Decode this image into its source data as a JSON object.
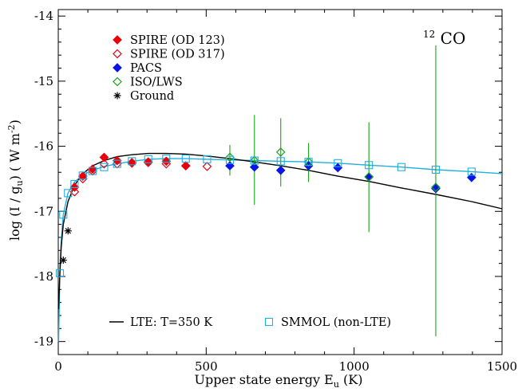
{
  "chart_data": {
    "type": "scatter",
    "title": "",
    "xlabel": "Upper state energy E",
    "xlabel_sub": "u",
    "xlabel_unit": " (K)",
    "ylabel": "log (I / g",
    "ylabel_sub": "u",
    "ylabel_unit": ") ( W m",
    "ylabel_sup": "-2",
    "ylabel_end": ")",
    "xlim": [
      0,
      1500
    ],
    "ylim": [
      -19.2,
      -13.9
    ],
    "x_ticks": [
      0,
      500,
      1000,
      1500
    ],
    "x_tick_labels": [
      "0",
      "500",
      "1000",
      "1500"
    ],
    "y_ticks": [
      -19,
      -18,
      -17,
      -16,
      -15,
      -14
    ],
    "y_tick_labels": [
      "-19",
      "-18",
      "-17",
      "-16",
      "-15",
      "-14"
    ],
    "grid": false,
    "annotation": {
      "sup": "12",
      "text": "CO"
    },
    "legend_top": {
      "placement": "top-left",
      "entries": [
        {
          "label": "SPIRE (OD 123)",
          "marker": "diamond-filled",
          "color": "#e8000b"
        },
        {
          "label": "SPIRE (OD 317)",
          "marker": "diamond-open",
          "color": "#e8000b"
        },
        {
          "label": "PACS",
          "marker": "diamond-filled",
          "color": "#0a14e6"
        },
        {
          "label": "ISO/LWS",
          "marker": "diamond-open",
          "color": "#1aa31a"
        },
        {
          "label": "Ground",
          "marker": "asterisk",
          "color": "#000000"
        }
      ]
    },
    "legend_bottom": {
      "placement": "bottom",
      "entries": [
        {
          "label": "LTE: T=350 K",
          "marker": "line",
          "color": "#000000"
        },
        {
          "label": "SMMOL (non-LTE)",
          "marker": "square-open",
          "color": "#1fb0e0"
        }
      ]
    },
    "series": [
      {
        "name": "SPIRE (OD 123)",
        "marker": "diamond-filled",
        "color": "#e8000b",
        "points": [
          [
            55,
            -16.63
          ],
          [
            83,
            -16.46
          ],
          [
            116,
            -16.35
          ],
          [
            155,
            -16.17
          ],
          [
            199,
            -16.22
          ],
          [
            249,
            -16.25
          ],
          [
            304,
            -16.24
          ],
          [
            365,
            -16.23
          ],
          [
            431,
            -16.3
          ]
        ]
      },
      {
        "name": "SPIRE (OD 317)",
        "marker": "diamond-open",
        "color": "#e8000b",
        "points": [
          [
            55,
            -16.7
          ],
          [
            83,
            -16.5
          ],
          [
            116,
            -16.38
          ],
          [
            155,
            -16.27
          ],
          [
            199,
            -16.27
          ],
          [
            249,
            -16.26
          ],
          [
            304,
            -16.25
          ],
          [
            365,
            -16.27
          ],
          [
            431,
            -16.3
          ],
          [
            503,
            -16.31
          ]
        ]
      },
      {
        "name": "PACS",
        "marker": "diamond-filled",
        "color": "#0a14e6",
        "points": [
          [
            580,
            -16.3
          ],
          [
            663,
            -16.32
          ],
          [
            752,
            -16.37
          ],
          [
            846,
            -16.3
          ],
          [
            945,
            -16.33
          ],
          [
            1050,
            -16.47
          ],
          [
            1276,
            -16.65
          ],
          [
            1397,
            -16.48
          ]
        ]
      },
      {
        "name": "ISO/LWS",
        "marker": "diamond-open",
        "color": "#1aa31a",
        "points": [
          [
            580,
            -16.17
          ],
          [
            663,
            -16.22
          ],
          [
            752,
            -16.09
          ],
          [
            846,
            -16.24
          ],
          [
            1050,
            -16.47
          ],
          [
            1276,
            -16.63
          ]
        ],
        "errors": [
          [
            -16.45,
            -15.98
          ],
          [
            -16.9,
            -15.52
          ],
          [
            -16.62,
            -15.57
          ],
          [
            -16.55,
            -15.95
          ],
          [
            -17.32,
            -15.63
          ],
          [
            -18.92,
            -14.45
          ]
        ]
      },
      {
        "name": "Ground",
        "marker": "asterisk",
        "color": "#000000",
        "points": [
          [
            17,
            -17.75
          ],
          [
            33,
            -17.3
          ]
        ]
      },
      {
        "name": "SMMOL (non-LTE)",
        "marker": "square-open",
        "color": "#1fb0e0",
        "points": [
          [
            5.5,
            -17.95
          ],
          [
            17,
            -17.05
          ],
          [
            33,
            -16.72
          ],
          [
            55,
            -16.58
          ],
          [
            83,
            -16.45
          ],
          [
            116,
            -16.38
          ],
          [
            155,
            -16.32
          ],
          [
            199,
            -16.27
          ],
          [
            249,
            -16.23
          ],
          [
            304,
            -16.2
          ],
          [
            365,
            -16.19
          ],
          [
            431,
            -16.19
          ],
          [
            503,
            -16.2
          ],
          [
            580,
            -16.21
          ],
          [
            663,
            -16.22
          ],
          [
            752,
            -16.23
          ],
          [
            846,
            -16.24
          ],
          [
            945,
            -16.26
          ],
          [
            1050,
            -16.29
          ],
          [
            1160,
            -16.32
          ],
          [
            1276,
            -16.36
          ],
          [
            1397,
            -16.39
          ]
        ],
        "curve": [
          [
            1,
            -19.0
          ],
          [
            5.5,
            -17.95
          ],
          [
            10,
            -17.45
          ],
          [
            17,
            -17.05
          ],
          [
            33,
            -16.72
          ],
          [
            55,
            -16.55
          ],
          [
            83,
            -16.44
          ],
          [
            116,
            -16.37
          ],
          [
            155,
            -16.31
          ],
          [
            199,
            -16.27
          ],
          [
            249,
            -16.23
          ],
          [
            304,
            -16.2
          ],
          [
            365,
            -16.19
          ],
          [
            431,
            -16.19
          ],
          [
            503,
            -16.2
          ],
          [
            580,
            -16.21
          ],
          [
            663,
            -16.22
          ],
          [
            752,
            -16.23
          ],
          [
            846,
            -16.24
          ],
          [
            945,
            -16.26
          ],
          [
            1050,
            -16.29
          ],
          [
            1160,
            -16.32
          ],
          [
            1276,
            -16.36
          ],
          [
            1397,
            -16.39
          ],
          [
            1500,
            -16.42
          ]
        ]
      },
      {
        "name": "LTE: T=350 K",
        "marker": "line",
        "color": "#000000",
        "curve": [
          [
            1,
            -18.5
          ],
          [
            5.5,
            -17.95
          ],
          [
            10,
            -17.55
          ],
          [
            17,
            -17.2
          ],
          [
            33,
            -16.85
          ],
          [
            55,
            -16.6
          ],
          [
            83,
            -16.42
          ],
          [
            116,
            -16.3
          ],
          [
            155,
            -16.22
          ],
          [
            199,
            -16.16
          ],
          [
            249,
            -16.13
          ],
          [
            304,
            -16.11
          ],
          [
            365,
            -16.11
          ],
          [
            431,
            -16.12
          ],
          [
            503,
            -16.15
          ],
          [
            580,
            -16.19
          ],
          [
            663,
            -16.24
          ],
          [
            752,
            -16.3
          ],
          [
            846,
            -16.37
          ],
          [
            945,
            -16.46
          ],
          [
            1050,
            -16.54
          ],
          [
            1160,
            -16.64
          ],
          [
            1276,
            -16.74
          ],
          [
            1397,
            -16.85
          ],
          [
            1500,
            -16.96
          ]
        ]
      }
    ]
  }
}
